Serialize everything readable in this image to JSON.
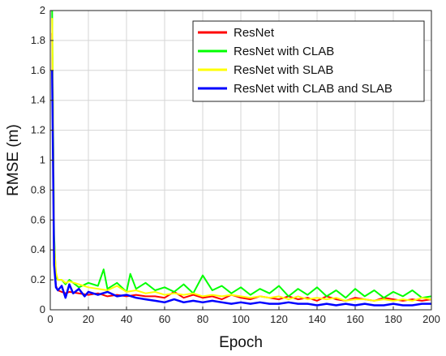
{
  "chart_data": {
    "type": "line",
    "title": "",
    "xlabel": "Epoch",
    "ylabel": "RMSE (m)",
    "xlim": [
      0,
      200
    ],
    "ylim": [
      0,
      2
    ],
    "xticks": [
      0,
      20,
      40,
      60,
      80,
      100,
      120,
      140,
      160,
      180,
      200
    ],
    "yticks": [
      0,
      0.2,
      0.4,
      0.6,
      0.8,
      1,
      1.2,
      1.4,
      1.6,
      1.8,
      2
    ],
    "grid": true,
    "legend_position": "top-right",
    "series": [
      {
        "name": "ResNet",
        "color": "#ff0000",
        "x": [
          1,
          2,
          3,
          4,
          6,
          8,
          10,
          15,
          20,
          25,
          30,
          35,
          40,
          45,
          50,
          55,
          60,
          65,
          70,
          75,
          80,
          85,
          90,
          95,
          100,
          105,
          110,
          115,
          120,
          125,
          130,
          135,
          140,
          145,
          150,
          155,
          160,
          165,
          170,
          175,
          180,
          185,
          190,
          195,
          200
        ],
        "y": [
          1.85,
          0.35,
          0.16,
          0.13,
          0.12,
          0.11,
          0.12,
          0.11,
          0.1,
          0.11,
          0.09,
          0.1,
          0.09,
          0.1,
          0.09,
          0.09,
          0.08,
          0.12,
          0.08,
          0.1,
          0.08,
          0.09,
          0.07,
          0.1,
          0.08,
          0.07,
          0.09,
          0.08,
          0.07,
          0.09,
          0.07,
          0.08,
          0.06,
          0.09,
          0.07,
          0.06,
          0.08,
          0.07,
          0.06,
          0.08,
          0.07,
          0.06,
          0.07,
          0.06,
          0.07
        ]
      },
      {
        "name": "ResNet with CLAB",
        "color": "#00ff00",
        "x": [
          1,
          2,
          3,
          4,
          6,
          8,
          10,
          15,
          20,
          25,
          28,
          30,
          35,
          40,
          42,
          45,
          50,
          55,
          60,
          65,
          70,
          75,
          80,
          85,
          90,
          95,
          100,
          105,
          110,
          115,
          120,
          125,
          130,
          135,
          140,
          145,
          150,
          155,
          160,
          165,
          170,
          175,
          180,
          185,
          190,
          195,
          200
        ],
        "y": [
          2.0,
          0.5,
          0.22,
          0.2,
          0.2,
          0.17,
          0.2,
          0.15,
          0.18,
          0.16,
          0.27,
          0.14,
          0.18,
          0.12,
          0.24,
          0.14,
          0.18,
          0.13,
          0.15,
          0.12,
          0.17,
          0.11,
          0.23,
          0.13,
          0.16,
          0.11,
          0.15,
          0.1,
          0.14,
          0.11,
          0.16,
          0.09,
          0.14,
          0.1,
          0.15,
          0.09,
          0.13,
          0.08,
          0.14,
          0.09,
          0.13,
          0.08,
          0.12,
          0.09,
          0.13,
          0.08,
          0.09
        ]
      },
      {
        "name": "ResNet with SLAB",
        "color": "#ffff00",
        "x": [
          1,
          2,
          3,
          4,
          6,
          8,
          10,
          15,
          20,
          25,
          30,
          35,
          40,
          45,
          50,
          55,
          60,
          65,
          70,
          75,
          80,
          85,
          90,
          95,
          100,
          105,
          110,
          115,
          120,
          125,
          130,
          135,
          140,
          145,
          150,
          155,
          160,
          165,
          170,
          175,
          180,
          185,
          190,
          195,
          200
        ],
        "y": [
          1.95,
          0.45,
          0.25,
          0.2,
          0.2,
          0.18,
          0.19,
          0.17,
          0.15,
          0.14,
          0.13,
          0.16,
          0.12,
          0.13,
          0.11,
          0.12,
          0.1,
          0.11,
          0.1,
          0.11,
          0.09,
          0.1,
          0.09,
          0.1,
          0.09,
          0.08,
          0.09,
          0.08,
          0.09,
          0.07,
          0.09,
          0.07,
          0.08,
          0.07,
          0.08,
          0.06,
          0.07,
          0.07,
          0.06,
          0.07,
          0.06,
          0.07,
          0.06,
          0.08,
          0.07
        ]
      },
      {
        "name": "ResNet with CLAB and SLAB",
        "color": "#0000ff",
        "x": [
          1,
          2,
          3,
          4,
          6,
          8,
          10,
          12,
          15,
          18,
          20,
          25,
          30,
          35,
          40,
          45,
          50,
          55,
          60,
          65,
          70,
          75,
          80,
          85,
          90,
          95,
          100,
          105,
          110,
          115,
          120,
          125,
          130,
          135,
          140,
          145,
          150,
          155,
          160,
          165,
          170,
          175,
          180,
          185,
          190,
          195,
          200
        ],
        "y": [
          1.6,
          0.3,
          0.15,
          0.13,
          0.16,
          0.08,
          0.17,
          0.11,
          0.14,
          0.09,
          0.12,
          0.1,
          0.12,
          0.09,
          0.1,
          0.08,
          0.07,
          0.06,
          0.05,
          0.07,
          0.05,
          0.06,
          0.05,
          0.06,
          0.05,
          0.04,
          0.05,
          0.04,
          0.05,
          0.04,
          0.04,
          0.05,
          0.04,
          0.04,
          0.03,
          0.04,
          0.03,
          0.04,
          0.03,
          0.04,
          0.03,
          0.03,
          0.04,
          0.03,
          0.03,
          0.04,
          0.04
        ]
      }
    ]
  }
}
